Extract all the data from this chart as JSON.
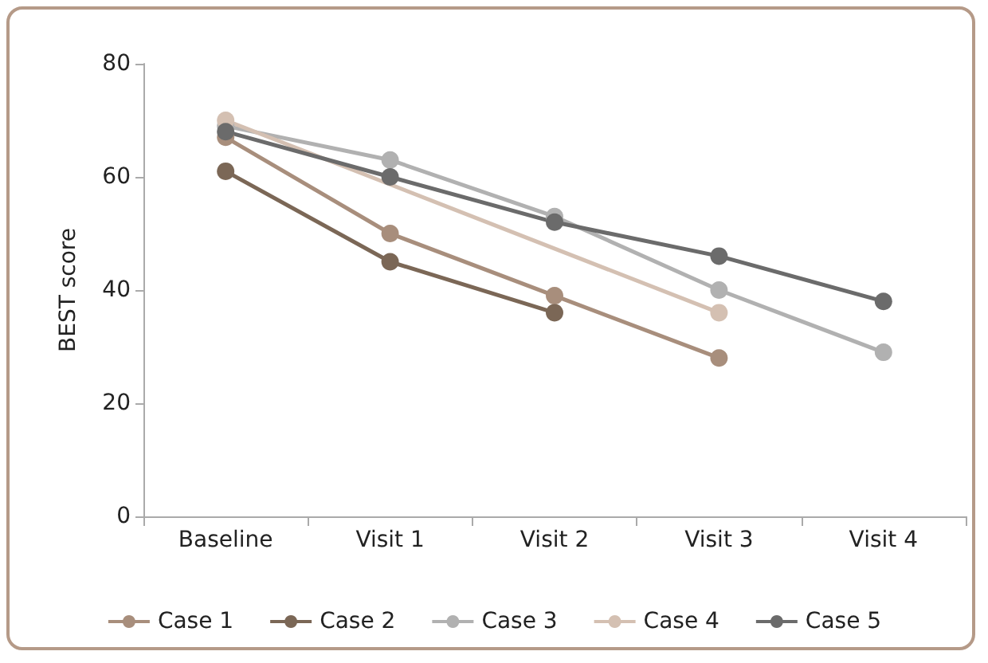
{
  "chart_data": {
    "type": "line",
    "ylabel": "BEST score",
    "categories": [
      "Baseline",
      "Visit 1",
      "Visit 2",
      "Visit 3",
      "Visit 4"
    ],
    "ylim": [
      0,
      80
    ],
    "yticks": [
      0,
      20,
      40,
      60,
      80
    ],
    "grid": false,
    "legend": "bottom",
    "marker": "circle",
    "line_style": "solid",
    "series": [
      {
        "name": "Case 1",
        "color": "#a88e7c",
        "values": [
          67,
          50,
          39,
          28,
          null
        ]
      },
      {
        "name": "Case 2",
        "color": "#7b6756",
        "values": [
          61,
          45,
          36,
          null,
          null
        ]
      },
      {
        "name": "Case 3",
        "color": "#b1b1b1",
        "values": [
          69,
          63,
          53,
          40,
          29
        ]
      },
      {
        "name": "Case 4",
        "color": "#d4c0b2",
        "values": [
          70,
          null,
          null,
          36,
          null
        ]
      },
      {
        "name": "Case 5",
        "color": "#6b6b6b",
        "values": [
          68,
          60,
          52,
          46,
          38
        ]
      }
    ]
  }
}
